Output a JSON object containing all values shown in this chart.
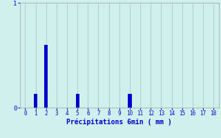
{
  "categories": [
    0,
    1,
    2,
    3,
    4,
    5,
    6,
    7,
    8,
    9,
    10,
    11,
    12,
    13,
    14,
    15,
    16,
    17,
    18
  ],
  "values": [
    0,
    0.13,
    0.6,
    0,
    0,
    0.13,
    0,
    0,
    0,
    0,
    0.13,
    0,
    0,
    0,
    0,
    0,
    0,
    0,
    0
  ],
  "bar_color": "#0000cc",
  "background_color": "#cff0ec",
  "grid_color": "#aabbbb",
  "xlabel": "Précipitations 6min ( mm )",
  "xlabel_color": "#0000cc",
  "tick_color": "#0000cc",
  "ylim": [
    0,
    1.0
  ],
  "xlim": [
    -0.5,
    18.5
  ],
  "yticks": [
    0,
    1
  ],
  "xticks": [
    0,
    1,
    2,
    3,
    4,
    5,
    6,
    7,
    8,
    9,
    10,
    11,
    12,
    13,
    14,
    15,
    16,
    17,
    18
  ],
  "bar_width": 0.35
}
